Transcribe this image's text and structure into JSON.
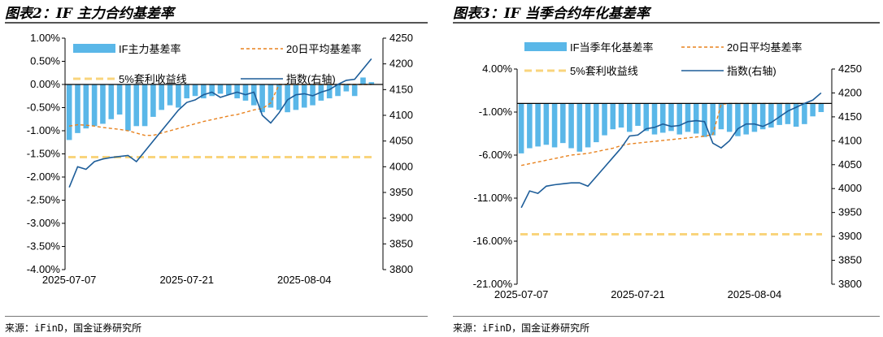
{
  "left": {
    "title": "图表2：IF 主力合约基差率",
    "source": "来源：iFinD，国金证券研究所"
  },
  "right": {
    "title": "图表3：IF 当季合约年化基差率",
    "source": "来源：iFinD，国金证券研究所"
  },
  "colors": {
    "bar": "#5ab7e8",
    "ma": "#e8821e",
    "riskfree": "#f9d47c",
    "index": "#1d5d99"
  },
  "chart_data": [
    {
      "type": "bar",
      "title": "IF主力合约基差率",
      "xlabel": "",
      "ylabel": "",
      "x_tick_labels": [
        "2025-07-07",
        "2025-07-21",
        "2025-08-04"
      ],
      "y_left_ticks": [
        "1.00%",
        "0.50%",
        "0.00%",
        "-0.50%",
        "-1.00%",
        "-1.50%",
        "-2.00%",
        "-2.50%",
        "-3.00%",
        "-3.50%",
        "-4.00%"
      ],
      "y_right_ticks": [
        "4250",
        "4200",
        "4150",
        "4100",
        "4050",
        "4000",
        "3950",
        "3900",
        "3850",
        "3800"
      ],
      "ylim_left": [
        -4.0,
        1.0
      ],
      "ylim_right": [
        3800,
        4250
      ],
      "legend": [
        "IF主力基差率",
        "20日平均基差率",
        "5%套利收益线",
        "指数(右轴)"
      ],
      "series": [
        {
          "name": "IF主力基差率",
          "axis": "left",
          "kind": "bar",
          "values": [
            -1.2,
            -1.05,
            -0.95,
            -0.9,
            -0.85,
            -0.75,
            -0.65,
            -1.0,
            -0.9,
            -0.9,
            -0.7,
            -0.55,
            -0.45,
            -0.5,
            -0.3,
            -0.25,
            -0.3,
            -0.25,
            -0.2,
            -0.22,
            -0.3,
            -0.35,
            -0.45,
            -0.6,
            -0.5,
            -0.55,
            -0.6,
            -0.55,
            -0.5,
            -0.45,
            -0.35,
            -0.3,
            -0.25,
            -0.15,
            -0.25,
            0.15,
            0.05
          ]
        },
        {
          "name": "20日平均基差率",
          "axis": "left",
          "kind": "line",
          "values": [
            -0.9,
            -0.87,
            -0.88,
            -0.9,
            -0.93,
            -0.95,
            -0.97,
            -1.0,
            -1.05,
            -1.1,
            -1.1,
            -1.05,
            -1.0,
            -0.95,
            -0.9,
            -0.85,
            -0.8,
            -0.76,
            -0.72,
            -0.68,
            -0.65,
            -0.6,
            -0.55,
            -0.52,
            -0.4,
            0.0,
            0.0,
            0.0,
            0.0,
            0.0,
            0.0,
            0.0,
            0.0,
            0.0,
            0.0,
            0.0,
            0.0
          ]
        },
        {
          "name": "5%套利收益线",
          "axis": "left",
          "kind": "hline",
          "values": [
            -1.57
          ]
        },
        {
          "name": "指数(右轴)",
          "axis": "right",
          "kind": "line",
          "values": [
            3960,
            4000,
            3995,
            4010,
            4015,
            4018,
            4020,
            4022,
            4010,
            4030,
            4050,
            4070,
            4090,
            4110,
            4125,
            4130,
            4140,
            4145,
            4135,
            4140,
            4145,
            4140,
            4145,
            4100,
            4085,
            4105,
            4130,
            4140,
            4142,
            4138,
            4145,
            4150,
            4160,
            4168,
            4170,
            4190,
            4210
          ]
        }
      ]
    },
    {
      "type": "bar",
      "title": "IF当季合约年化基差率",
      "xlabel": "",
      "ylabel": "",
      "x_tick_labels": [
        "2025-07-07",
        "2025-07-21",
        "2025-08-04"
      ],
      "y_left_ticks": [
        "4.00%",
        "-1.00%",
        "-6.00%",
        "-11.00%",
        "-16.00%",
        "-21.00%"
      ],
      "y_right_ticks": [
        "4250",
        "4200",
        "4150",
        "4100",
        "4050",
        "4000",
        "3950",
        "3900",
        "3850",
        "3800"
      ],
      "ylim_left": [
        -21.0,
        4.0
      ],
      "ylim_right": [
        3800,
        4250
      ],
      "legend": [
        "IF当季年化基差率",
        "20日平均基差率",
        "5%套利收益线",
        "指数(右轴)"
      ],
      "series": [
        {
          "name": "IF当季年化基差率",
          "axis": "left",
          "kind": "bar",
          "values": [
            -5.8,
            -5.2,
            -5.0,
            -4.8,
            -5.1,
            -4.6,
            -5.2,
            -5.6,
            -5.1,
            -4.5,
            -3.7,
            -3.0,
            -2.8,
            -3.3,
            -2.6,
            -3.2,
            -3.6,
            -3.4,
            -3.2,
            -3.6,
            -3.3,
            -3.5,
            -3.9,
            -3.7,
            -3.0,
            -3.3,
            -3.8,
            -3.6,
            -3.3,
            -3.0,
            -2.8,
            -2.5,
            -2.4,
            -2.7,
            -2.4,
            -1.5,
            -1.0
          ]
        },
        {
          "name": "20日平均基差率",
          "axis": "left",
          "kind": "line",
          "values": [
            -7.2,
            -7.0,
            -6.8,
            -6.6,
            -6.4,
            -6.2,
            -6.0,
            -5.9,
            -5.8,
            -5.6,
            -5.4,
            -5.2,
            -4.9,
            -4.7,
            -4.6,
            -4.5,
            -4.4,
            -4.3,
            -4.2,
            -4.1,
            -4.0,
            -3.9,
            -3.8,
            -3.6,
            -0.1,
            0.0,
            0.0,
            0.0,
            0.0,
            0.0,
            0.0,
            0.0,
            0.0,
            0.0,
            0.0,
            0.0,
            0.0
          ]
        },
        {
          "name": "5%套利收益线",
          "axis": "left",
          "kind": "hline",
          "values": [
            -15.2
          ]
        },
        {
          "name": "指数(右轴)",
          "axis": "right",
          "kind": "line",
          "values": [
            3960,
            3995,
            3990,
            4005,
            4008,
            4010,
            4012,
            4012,
            4005,
            4025,
            4045,
            4065,
            4085,
            4110,
            4112,
            4125,
            4128,
            4135,
            4130,
            4132,
            4140,
            4142,
            4140,
            4095,
            4085,
            4100,
            4125,
            4135,
            4135,
            4130,
            4138,
            4150,
            4162,
            4170,
            4178,
            4185,
            4200
          ]
        }
      ]
    }
  ]
}
